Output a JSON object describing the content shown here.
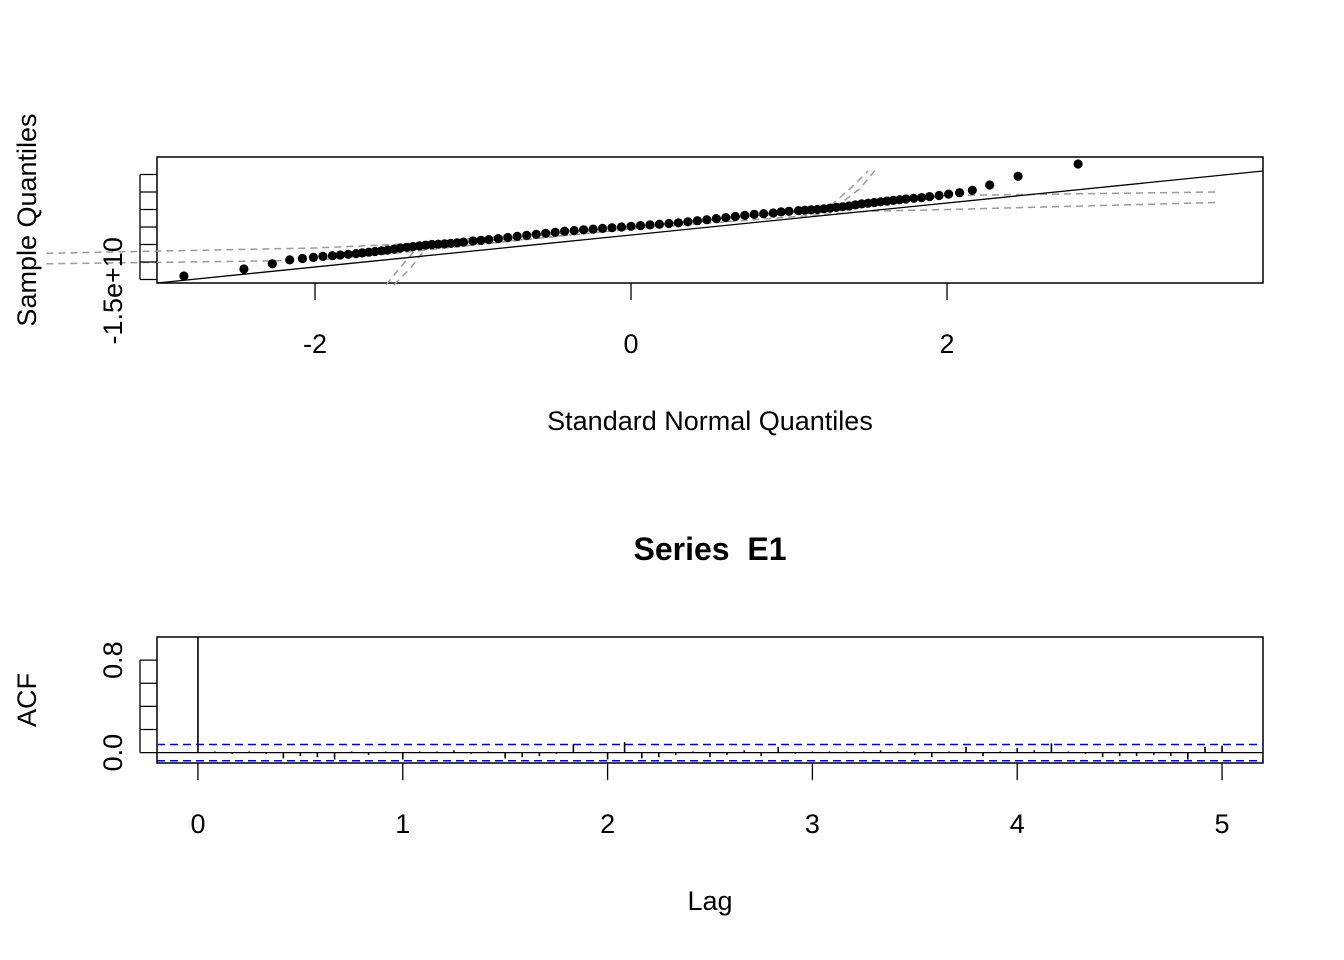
{
  "chart_data": [
    {
      "type": "scatter",
      "subtype": "qq-plot",
      "title": "",
      "xlabel": "Standard Normal Quantiles",
      "ylabel": "Sample Quantiles",
      "xlim": [
        -3.0,
        4.0
      ],
      "ylim": [
        -1.6,
        2.0
      ],
      "x_ticks": [
        -2,
        0,
        2
      ],
      "x_tick_labels": [
        "-2",
        "0",
        "2"
      ],
      "y_ticks": [
        -1.5,
        -1.0,
        -0.5,
        0.0,
        0.5,
        1.0,
        1.5
      ],
      "y_tick_labels": [
        "-1.5e+10"
      ],
      "grid": false,
      "reference_line": {
        "x": [
          -3.0,
          4.0
        ],
        "y": [
          -1.6,
          1.6
        ]
      },
      "confidence_band_outer": {
        "upper": [
          [
            -3.7,
            -0.75
          ],
          [
            -2.0,
            -0.6
          ],
          [
            -1.5,
            -0.5
          ],
          [
            0.0,
            0.0
          ],
          [
            1.5,
            0.6
          ],
          [
            2.0,
            0.9
          ],
          [
            3.7,
            1.0
          ]
        ],
        "lower": [
          [
            -3.7,
            -1.05
          ],
          [
            -2.0,
            -0.95
          ],
          [
            -1.5,
            -0.75
          ],
          [
            0.0,
            -0.05
          ],
          [
            1.5,
            0.45
          ],
          [
            2.0,
            0.5
          ],
          [
            3.7,
            0.7
          ]
        ]
      },
      "confidence_band_inner": {
        "upper": [
          [
            -1.55,
            -1.65
          ],
          [
            -1.45,
            -1.1
          ],
          [
            -1.35,
            -0.58
          ],
          [
            0.0,
            0.0
          ],
          [
            1.3,
            0.58
          ],
          [
            1.45,
            1.1
          ],
          [
            1.55,
            1.65
          ]
        ],
        "lower": [
          [
            -1.5,
            -1.65
          ],
          [
            -1.4,
            -1.2
          ],
          [
            -1.3,
            -0.62
          ],
          [
            0.0,
            -0.06
          ],
          [
            1.25,
            0.55
          ],
          [
            1.4,
            1.15
          ],
          [
            1.5,
            1.6
          ]
        ]
      },
      "points": {
        "x": [
          -2.83,
          -2.45,
          -2.27,
          -2.16,
          -2.08,
          -2.01,
          -1.95,
          -1.89,
          -1.84,
          -1.79,
          -1.74,
          -1.7,
          -1.66,
          -1.62,
          -1.58,
          -1.54,
          -1.5,
          -1.46,
          -1.42,
          -1.38,
          -1.34,
          -1.3,
          -1.26,
          -1.22,
          -1.18,
          -1.14,
          -1.1,
          -1.06,
          -1.0,
          -0.95,
          -0.9,
          -0.84,
          -0.78,
          -0.72,
          -0.66,
          -0.6,
          -0.54,
          -0.48,
          -0.42,
          -0.36,
          -0.3,
          -0.24,
          -0.18,
          -0.12,
          -0.06,
          0.0,
          0.06,
          0.12,
          0.18,
          0.24,
          0.3,
          0.36,
          0.42,
          0.48,
          0.54,
          0.6,
          0.66,
          0.72,
          0.78,
          0.84,
          0.9,
          0.95,
          1.0,
          1.06,
          1.1,
          1.14,
          1.18,
          1.22,
          1.26,
          1.3,
          1.34,
          1.38,
          1.42,
          1.46,
          1.5,
          1.54,
          1.58,
          1.62,
          1.66,
          1.7,
          1.74,
          1.79,
          1.84,
          1.89,
          1.95,
          2.01,
          2.08,
          2.16,
          2.27,
          2.45,
          2.83
        ],
        "y": [
          -1.4,
          -1.2,
          -1.05,
          -0.94,
          -0.9,
          -0.87,
          -0.84,
          -0.82,
          -0.8,
          -0.78,
          -0.76,
          -0.74,
          -0.72,
          -0.7,
          -0.68,
          -0.66,
          -0.63,
          -0.6,
          -0.58,
          -0.56,
          -0.54,
          -0.52,
          -0.5,
          -0.49,
          -0.48,
          -0.47,
          -0.45,
          -0.43,
          -0.4,
          -0.38,
          -0.36,
          -0.33,
          -0.3,
          -0.27,
          -0.24,
          -0.21,
          -0.18,
          -0.15,
          -0.12,
          -0.1,
          -0.08,
          -0.06,
          -0.04,
          -0.02,
          0.0,
          0.02,
          0.04,
          0.06,
          0.08,
          0.1,
          0.12,
          0.15,
          0.18,
          0.21,
          0.24,
          0.27,
          0.3,
          0.33,
          0.36,
          0.38,
          0.4,
          0.43,
          0.45,
          0.47,
          0.48,
          0.49,
          0.5,
          0.52,
          0.54,
          0.56,
          0.58,
          0.6,
          0.63,
          0.66,
          0.68,
          0.7,
          0.72,
          0.74,
          0.76,
          0.78,
          0.8,
          0.82,
          0.84,
          0.87,
          0.9,
          0.94,
          0.98,
          1.05,
          1.2,
          1.45,
          1.8
        ]
      }
    },
    {
      "type": "bar",
      "subtype": "acf",
      "title": "Series  E1",
      "xlabel": "Lag",
      "ylabel": "ACF",
      "xlim": [
        -0.2,
        5.2
      ],
      "ylim": [
        -0.09,
        1.0
      ],
      "x_ticks": [
        0,
        1,
        2,
        3,
        4,
        5
      ],
      "x_tick_labels": [
        "0",
        "1",
        "2",
        "3",
        "4",
        "5"
      ],
      "y_ticks": [
        0.0,
        0.2,
        0.4,
        0.6,
        0.8
      ],
      "y_tick_labels": [
        "0.0",
        "0.8"
      ],
      "grid": false,
      "ci_level": 0.07,
      "ci_color": "#0000cc",
      "lags": [
        0.0,
        0.083,
        0.167,
        0.25,
        0.333,
        0.417,
        0.5,
        0.583,
        0.667,
        0.75,
        0.833,
        0.917,
        1.0,
        1.083,
        1.167,
        1.25,
        1.333,
        1.417,
        1.5,
        1.583,
        1.667,
        1.75,
        1.833,
        1.917,
        2.0,
        2.083,
        2.167,
        2.25,
        2.333,
        2.417,
        2.5,
        2.583,
        2.667,
        2.75,
        2.833,
        2.917,
        3.0,
        3.083,
        3.167,
        3.25,
        3.333,
        3.417,
        3.5,
        3.583,
        3.667,
        3.75,
        3.833,
        3.917,
        4.0,
        4.083,
        4.167,
        4.25,
        4.333,
        4.417,
        4.5,
        4.583,
        4.667,
        4.75,
        4.833,
        4.917,
        5.0
      ],
      "values": [
        1.0,
        0.01,
        -0.01,
        0.01,
        -0.01,
        -0.05,
        -0.03,
        -0.04,
        -0.06,
        0.01,
        -0.02,
        0.01,
        -0.06,
        0.01,
        0.01,
        0.02,
        -0.01,
        0.01,
        -0.05,
        -0.04,
        -0.03,
        -0.01,
        0.07,
        0.01,
        -0.06,
        0.09,
        -0.05,
        -0.04,
        -0.02,
        0.01,
        -0.04,
        -0.02,
        0.02,
        -0.03,
        0.05,
        -0.01,
        0.01,
        0.01,
        0.01,
        0.01,
        0.02,
        0.01,
        -0.02,
        -0.04,
        0.01,
        0.05,
        -0.03,
        0.01,
        0.04,
        0.02,
        0.08,
        0.01,
        -0.01,
        -0.04,
        -0.03,
        -0.03,
        -0.02,
        -0.03,
        -0.06,
        0.05,
        0.06
      ]
    }
  ]
}
